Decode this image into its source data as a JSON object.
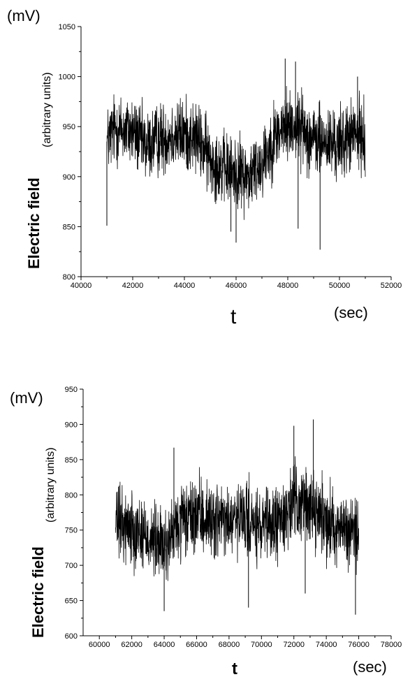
{
  "chart_data": [
    {
      "type": "line",
      "y_unit": "(mV)",
      "x_unit": "(sec)",
      "xlabel": "t",
      "ylabel_main": "Electric field",
      "ylabel_sub": "(arbitrary units)",
      "xlim": [
        40000,
        52000
      ],
      "ylim": [
        800,
        1050
      ],
      "x_ticks": [
        "40000",
        "42000",
        "44000",
        "46000",
        "48000",
        "50000",
        "52000"
      ],
      "y_ticks": [
        "800",
        "850",
        "900",
        "950",
        "1000",
        "1050"
      ],
      "x_range_data": [
        41000,
        51000
      ],
      "series": [
        {
          "trend": [
            [
              41000,
              935
            ],
            [
              41300,
              948
            ],
            [
              42000,
              945
            ],
            [
              42500,
              930
            ],
            [
              43000,
              937
            ],
            [
              43500,
              942
            ],
            [
              44000,
              942
            ],
            [
              44500,
              938
            ],
            [
              45000,
              918
            ],
            [
              45500,
              908
            ],
            [
              46000,
              904
            ],
            [
              46500,
              900
            ],
            [
              47000,
              915
            ],
            [
              47500,
              940
            ],
            [
              48000,
              952
            ],
            [
              48500,
              950
            ],
            [
              49000,
              936
            ],
            [
              49500,
              934
            ],
            [
              50000,
              932
            ],
            [
              50500,
              942
            ],
            [
              51000,
              940
            ]
          ],
          "spread": 33,
          "min_points": [
            [
              41000,
              851
            ],
            [
              46000,
              834
            ],
            [
              48400,
              848
            ],
            [
              49250,
              827
            ],
            [
              45800,
              845
            ]
          ],
          "max_points": [
            [
              47900,
              1018
            ],
            [
              48300,
              1015
            ],
            [
              50700,
              1000
            ]
          ],
          "color": "#000000"
        }
      ]
    },
    {
      "type": "line",
      "y_unit": "(mV)",
      "x_unit": "(sec)",
      "xlabel": "t",
      "ylabel_main": "Electric field",
      "ylabel_sub": "(arbitrary units)",
      "xlim": [
        59000,
        78000
      ],
      "ylim": [
        600,
        950
      ],
      "x_ticks": [
        "60000",
        "62000",
        "64000",
        "66000",
        "68000",
        "70000",
        "72000",
        "74000",
        "76000",
        "78000"
      ],
      "y_ticks": [
        "600",
        "650",
        "700",
        "750",
        "800",
        "850",
        "900",
        "950"
      ],
      "x_range_data": [
        61000,
        76000
      ],
      "series": [
        {
          "trend": [
            [
              61000,
              760
            ],
            [
              62000,
              755
            ],
            [
              63000,
              740
            ],
            [
              64000,
              725
            ],
            [
              65000,
              760
            ],
            [
              66000,
              770
            ],
            [
              67000,
              765
            ],
            [
              68000,
              760
            ],
            [
              69000,
              765
            ],
            [
              70000,
              750
            ],
            [
              71000,
              760
            ],
            [
              72000,
              790
            ],
            [
              73000,
              785
            ],
            [
              74000,
              765
            ],
            [
              75000,
              750
            ],
            [
              76000,
              745
            ]
          ],
          "spread": 48,
          "min_points": [
            [
              64000,
              635
            ],
            [
              69200,
              640
            ],
            [
              75800,
              630
            ],
            [
              72700,
              660
            ]
          ],
          "max_points": [
            [
              72000,
              898
            ],
            [
              73200,
              907
            ],
            [
              64600,
              867
            ]
          ],
          "color": "#000000"
        }
      ]
    }
  ]
}
